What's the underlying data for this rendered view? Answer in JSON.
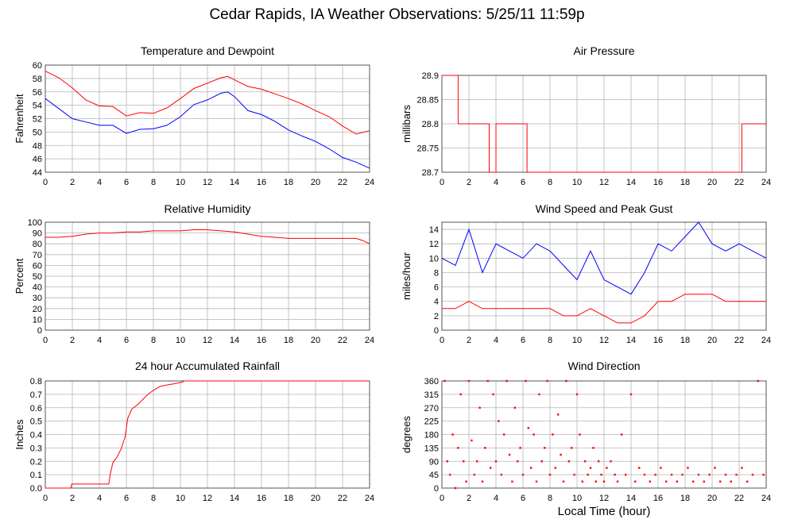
{
  "title": "Cedar Rapids, IA Weather Observations: 5/25/11 11:59p",
  "global_xlabel": "Local Time (hour)",
  "colors": {
    "temperature": "#ff0000",
    "dewpoint": "#0000ff",
    "gust": "#0000ff",
    "speed": "#ff0000",
    "rain": "#ff0000",
    "pressure": "#ff0000",
    "humidity": "#ff0000",
    "direction": "#ff0000",
    "grid": "#b4b4b4"
  },
  "chart_data": [
    {
      "id": "temp",
      "type": "line",
      "title": "Temperature and Dewpoint",
      "ylabel": "Fahrenheit",
      "xlim": [
        0,
        24
      ],
      "ylim": [
        44,
        60
      ],
      "xticks": [
        0,
        2,
        4,
        6,
        8,
        10,
        12,
        14,
        16,
        18,
        20,
        22,
        24
      ],
      "yticks": [
        44,
        46,
        48,
        50,
        52,
        54,
        56,
        58,
        60
      ],
      "grid": true,
      "series": [
        {
          "color": "#ff0000",
          "x": [
            0,
            1,
            2,
            3,
            4,
            5,
            6,
            7,
            8,
            9,
            10,
            11,
            12,
            13,
            13.5,
            14,
            15,
            16,
            17,
            18,
            19,
            20,
            21,
            22,
            23,
            24
          ],
          "y": [
            59.1,
            58.1,
            56.6,
            54.8,
            53.9,
            53.8,
            52.4,
            52.9,
            52.8,
            53.6,
            55.0,
            56.5,
            57.3,
            58.1,
            58.3,
            57.8,
            56.8,
            56.4,
            55.7,
            55.0,
            54.2,
            53.2,
            52.3,
            50.9,
            49.7,
            50.2
          ]
        },
        {
          "color": "#0000ff",
          "x": [
            0,
            1,
            2,
            3,
            4,
            5,
            6,
            7,
            8,
            9,
            10,
            11,
            12,
            13,
            13.5,
            14,
            15,
            16,
            17,
            18,
            19,
            20,
            21,
            22,
            23,
            24
          ],
          "y": [
            55.0,
            53.5,
            52.0,
            51.5,
            51.0,
            51.0,
            49.8,
            50.4,
            50.5,
            51.0,
            52.3,
            54.1,
            54.8,
            55.8,
            56.0,
            55.3,
            53.2,
            52.6,
            51.6,
            50.3,
            49.4,
            48.6,
            47.5,
            46.2,
            45.5,
            44.6
          ]
        }
      ]
    },
    {
      "id": "pressure",
      "type": "line",
      "title": "Air Pressure",
      "ylabel": "millibars",
      "xlim": [
        0,
        24
      ],
      "ylim": [
        28.7,
        28.9
      ],
      "xticks": [
        0,
        2,
        4,
        6,
        8,
        10,
        12,
        14,
        16,
        18,
        20,
        22,
        24
      ],
      "yticks": [
        28.7,
        28.75,
        28.8,
        28.85,
        28.9
      ],
      "ytick_labels": [
        "28.7",
        "28.75",
        "28.8",
        "28.85",
        "28.9"
      ],
      "grid": true,
      "series": [
        {
          "color": "#ff0000",
          "step": true,
          "x": [
            0,
            1.2,
            1.2,
            3.5,
            3.5,
            4.0,
            4.0,
            6.3,
            6.3,
            22.2,
            22.2,
            24
          ],
          "y": [
            28.9,
            28.9,
            28.8,
            28.8,
            28.7,
            28.7,
            28.8,
            28.8,
            28.7,
            28.7,
            28.8,
            28.8
          ]
        }
      ]
    },
    {
      "id": "humidity",
      "type": "line",
      "title": "Relative Humidity",
      "ylabel": "Percent",
      "xlim": [
        0,
        24
      ],
      "ylim": [
        0,
        100
      ],
      "xticks": [
        0,
        2,
        4,
        6,
        8,
        10,
        12,
        14,
        16,
        18,
        20,
        22,
        24
      ],
      "yticks": [
        0,
        10,
        20,
        30,
        40,
        50,
        60,
        70,
        80,
        90,
        100
      ],
      "grid": true,
      "series": [
        {
          "color": "#ff0000",
          "x": [
            0,
            1,
            2,
            3,
            4,
            5,
            6,
            7,
            8,
            9,
            10,
            11,
            12,
            13,
            14,
            15,
            16,
            17,
            18,
            19,
            20,
            21,
            22,
            23,
            23.5,
            24
          ],
          "y": [
            86,
            86,
            87,
            89,
            90,
            90,
            91,
            91,
            92,
            92,
            92,
            93,
            93,
            92,
            91,
            89,
            87,
            86,
            85,
            85,
            85,
            85,
            85,
            85,
            83,
            80
          ]
        }
      ]
    },
    {
      "id": "wind",
      "type": "line",
      "title": "Wind Speed and Peak Gust",
      "ylabel": "miles/hour",
      "xlim": [
        0,
        24
      ],
      "ylim": [
        0,
        15
      ],
      "xticks": [
        0,
        2,
        4,
        6,
        8,
        10,
        12,
        14,
        16,
        18,
        20,
        22,
        24
      ],
      "yticks": [
        0,
        2,
        4,
        6,
        8,
        10,
        12,
        14
      ],
      "grid": true,
      "series": [
        {
          "color": "#0000ff",
          "x": [
            0,
            1,
            2,
            3,
            4,
            5,
            6,
            7,
            8,
            9,
            10,
            11,
            12,
            13,
            14,
            15,
            16,
            17,
            18,
            19,
            20,
            21,
            22,
            23,
            24
          ],
          "y": [
            10,
            9,
            14,
            8,
            12,
            11,
            10,
            12,
            11,
            9,
            7,
            11,
            7,
            6,
            5,
            8,
            12,
            11,
            13,
            15,
            12,
            11,
            12,
            11,
            10
          ]
        },
        {
          "color": "#ff0000",
          "x": [
            0,
            1,
            2,
            3,
            4,
            5,
            6,
            7,
            8,
            9,
            10,
            11,
            12,
            13,
            14,
            15,
            16,
            17,
            18,
            19,
            20,
            21,
            22,
            23,
            24
          ],
          "y": [
            3,
            3,
            4,
            3,
            3,
            3,
            3,
            3,
            3,
            2,
            2,
            3,
            2,
            1,
            1,
            2,
            4,
            4,
            5,
            5,
            5,
            4,
            4,
            4,
            4
          ]
        }
      ]
    },
    {
      "id": "rain",
      "type": "line",
      "title": "24 hour Accumulated Rainfall",
      "ylabel": "Inches",
      "xlim": [
        0,
        24
      ],
      "ylim": [
        0,
        0.8
      ],
      "xticks": [
        0,
        2,
        4,
        6,
        8,
        10,
        12,
        14,
        16,
        18,
        20,
        22,
        24
      ],
      "yticks": [
        0,
        0.1,
        0.2,
        0.3,
        0.4,
        0.5,
        0.6,
        0.7,
        0.8
      ],
      "ytick_labels": [
        "0.0",
        "0.1",
        "0.2",
        "0.3",
        "0.4",
        "0.5",
        "0.6",
        "0.7",
        "0.8"
      ],
      "grid": true,
      "series": [
        {
          "color": "#ff0000",
          "x": [
            0,
            1.9,
            1.95,
            4.7,
            4.8,
            5.0,
            5.3,
            5.6,
            5.9,
            6.1,
            6.4,
            6.8,
            7.2,
            7.6,
            8.0,
            8.5,
            9.0,
            9.6,
            10.1,
            10.3,
            24
          ],
          "y": [
            0,
            0,
            0.03,
            0.03,
            0.1,
            0.19,
            0.23,
            0.29,
            0.38,
            0.52,
            0.59,
            0.62,
            0.66,
            0.7,
            0.73,
            0.76,
            0.77,
            0.78,
            0.79,
            0.8,
            0.8
          ]
        }
      ]
    },
    {
      "id": "direction",
      "type": "scatter",
      "title": "Wind Direction",
      "ylabel": "degrees",
      "xlim": [
        0,
        24
      ],
      "ylim": [
        0,
        360
      ],
      "xticks": [
        0,
        2,
        4,
        6,
        8,
        10,
        12,
        14,
        16,
        18,
        20,
        22,
        24
      ],
      "yticks": [
        0,
        45,
        90,
        135,
        180,
        225,
        270,
        315,
        360
      ],
      "grid": true,
      "series": [
        {
          "color": "#ff0000",
          "x": [
            0.2,
            0.4,
            0.6,
            0.8,
            1.0,
            1.2,
            1.4,
            1.6,
            1.8,
            2.0,
            2.2,
            2.4,
            2.6,
            2.8,
            3.0,
            3.2,
            3.4,
            3.6,
            3.8,
            4.0,
            4.2,
            4.4,
            4.6,
            4.8,
            5.0,
            5.2,
            5.4,
            5.6,
            5.8,
            6.0,
            6.2,
            6.4,
            6.6,
            6.8,
            7.0,
            7.2,
            7.4,
            7.6,
            7.8,
            8.0,
            8.2,
            8.4,
            8.6,
            8.8,
            9.0,
            9.2,
            9.4,
            9.6,
            9.8,
            10.0,
            10.2,
            10.4,
            10.6,
            10.8,
            11.0,
            11.2,
            11.4,
            11.6,
            11.8,
            12.0,
            12.2,
            12.5,
            12.8,
            13.0,
            13.3,
            13.6,
            14.0,
            14.3,
            14.6,
            15.0,
            15.4,
            15.8,
            16.2,
            16.6,
            17.0,
            17.4,
            17.8,
            18.2,
            18.6,
            19.0,
            19.4,
            19.8,
            20.2,
            20.6,
            21.0,
            21.4,
            21.8,
            22.2,
            22.6,
            23.0,
            23.4,
            23.8
          ],
          "y": [
            360,
            90,
            45,
            180,
            0,
            135,
            315,
            90,
            22,
            360,
            160,
            45,
            90,
            270,
            22,
            135,
            360,
            68,
            315,
            90,
            225,
            45,
            180,
            360,
            112,
            22,
            270,
            90,
            135,
            45,
            360,
            202,
            68,
            180,
            22,
            315,
            90,
            135,
            360,
            45,
            180,
            68,
            247,
            112,
            22,
            360,
            90,
            135,
            45,
            315,
            180,
            22,
            90,
            45,
            68,
            135,
            22,
            90,
            45,
            22,
            68,
            90,
            45,
            22,
            180,
            45,
            315,
            22,
            68,
            45,
            22,
            45,
            68,
            22,
            45,
            22,
            45,
            68,
            22,
            45,
            22,
            45,
            68,
            22,
            45,
            22,
            45,
            68,
            22,
            45,
            360,
            45
          ]
        }
      ]
    }
  ]
}
